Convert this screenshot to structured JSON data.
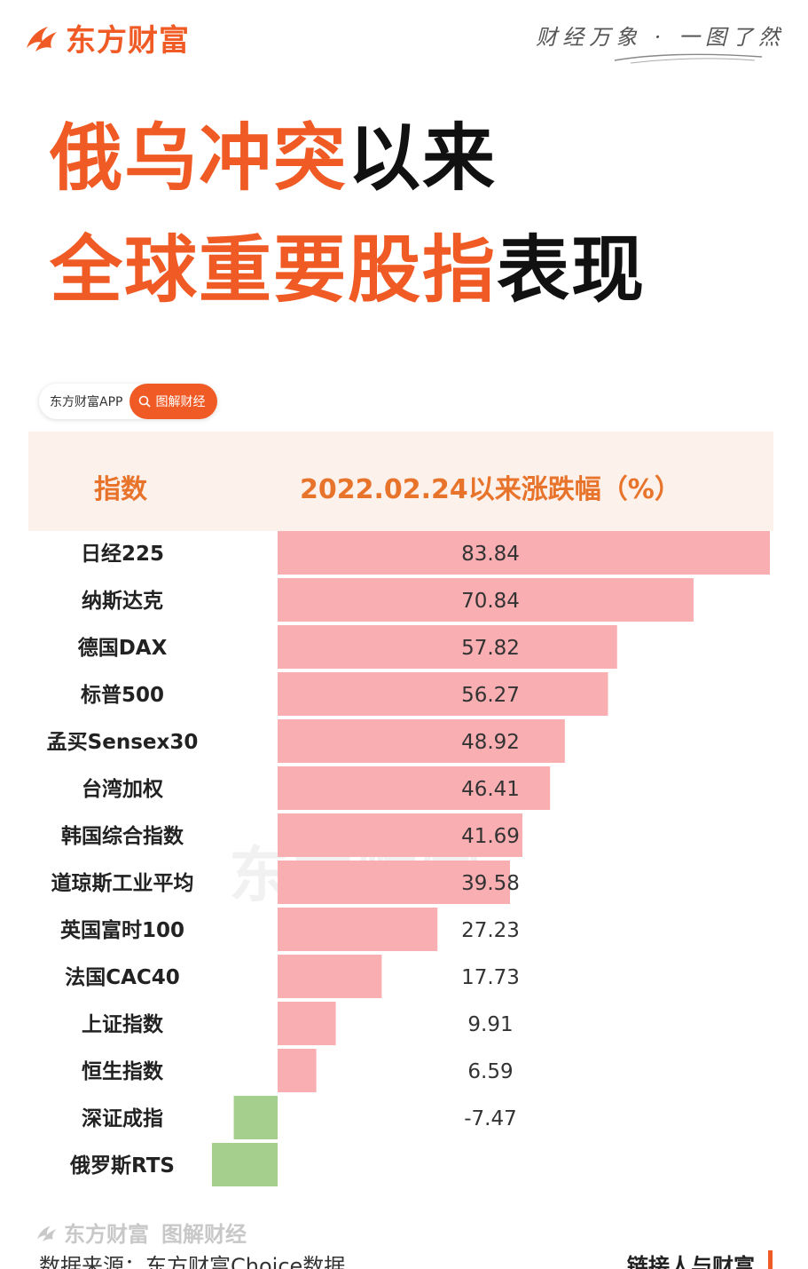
{
  "header": {
    "brand": "东方财富",
    "slogan": "财经万象 · 一图了然"
  },
  "title": {
    "line1_orange": "俄乌冲突",
    "line1_black": "以来",
    "line2_orange": "全球重要股指",
    "line2_black": "表现"
  },
  "app_tag": {
    "name": "东方财富APP",
    "pill": "图解财经"
  },
  "table_header": {
    "index": "指数",
    "change": "2022.02.24以来涨跌幅（%）"
  },
  "colors": {
    "accent": "#f05a24",
    "positive_bar": "#f9aeb2",
    "negative_bar": "#a4cf8c",
    "header_bg": "#fdf1ec",
    "header_text": "#e8742c"
  },
  "chart_data": {
    "type": "bar",
    "orientation": "horizontal",
    "categories": [
      "日经225",
      "纳斯达克",
      "德国DAX",
      "标普500",
      "孟买Sensex30",
      "台湾加权",
      "韩国综合指数",
      "道琼斯工业平均",
      "英国富时100",
      "法国CAC40",
      "上证指数",
      "恒生指数",
      "深证成指",
      "俄罗斯RTS"
    ],
    "values": [
      83.84,
      70.84,
      57.82,
      56.27,
      48.92,
      46.41,
      41.69,
      39.58,
      27.23,
      17.73,
      9.91,
      6.59,
      -7.47,
      null
    ],
    "value_labels": [
      "83.84",
      "70.84",
      "57.82",
      "56.27",
      "48.92",
      "46.41",
      "41.69",
      "39.58",
      "27.23",
      "17.73",
      "9.91",
      "6.59",
      "-7.47",
      ""
    ],
    "watermark": "东方财富"
  },
  "footer": {
    "brand": "东方财富",
    "brand_tag": "图解财经",
    "source": "数据来源：东方财富Choice数据",
    "motto": "链接人与财富"
  }
}
